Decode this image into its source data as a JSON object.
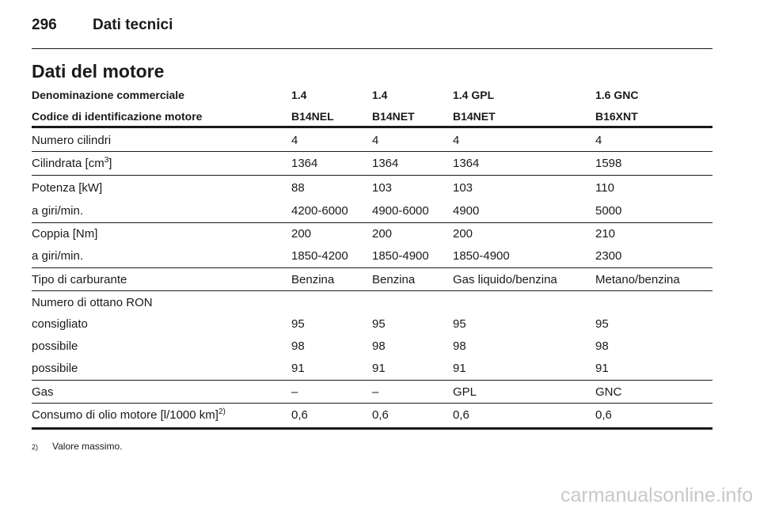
{
  "header": {
    "page_number": "296",
    "title": "Dati tecnici"
  },
  "section_title": "Dati del motore",
  "table": {
    "header_rows": [
      [
        "Denominazione commerciale",
        "1.4",
        "1.4",
        "1.4 GPL",
        "1.6 GNC"
      ],
      [
        "Codice di identificazione motore",
        "B14NEL",
        "B14NET",
        "B14NET",
        "B16XNT"
      ]
    ],
    "rows": [
      {
        "label": "Numero cilindri",
        "cells": [
          "4",
          "4",
          "4",
          "4"
        ]
      },
      {
        "label": "Cilindrata [cm",
        "sup": "3",
        "label_end": "]",
        "cells": [
          "1364",
          "1364",
          "1364",
          "1598"
        ]
      },
      {
        "label": "Potenza [kW]",
        "cells": [
          "88",
          "103",
          "103",
          "110"
        ]
      },
      {
        "label": "a giri/min.",
        "cells": [
          "4200-6000",
          "4900-6000",
          "4900",
          "5000"
        ]
      },
      {
        "label": "Coppia [Nm]",
        "cells": [
          "200",
          "200",
          "200",
          "210"
        ]
      },
      {
        "label": "a giri/min.",
        "cells": [
          "1850-4200",
          "1850-4900",
          "1850-4900",
          "2300"
        ]
      },
      {
        "label": "Tipo di carburante",
        "cells": [
          "Benzina",
          "Benzina",
          "Gas liquido/benzina",
          "Metano/benzina"
        ]
      },
      {
        "label": "Numero di ottano RON",
        "cells": []
      },
      {
        "label": "consigliato",
        "cells": [
          "95",
          "95",
          "95",
          "95"
        ]
      },
      {
        "label": "possibile",
        "cells": [
          "98",
          "98",
          "98",
          "98"
        ]
      },
      {
        "label": "possibile",
        "cells": [
          "91",
          "91",
          "91",
          "91"
        ]
      },
      {
        "label": "Gas",
        "cells": [
          "–",
          "–",
          "GPL",
          "GNC"
        ]
      },
      {
        "label": "Consumo di olio motore [l/1000 km]",
        "sup": "2)",
        "cells": [
          "0,6",
          "0,6",
          "0,6",
          "0,6"
        ]
      }
    ]
  },
  "footnote": {
    "mark": "2)",
    "text": "Valore massimo."
  },
  "watermark": "carmanualsonline.info"
}
